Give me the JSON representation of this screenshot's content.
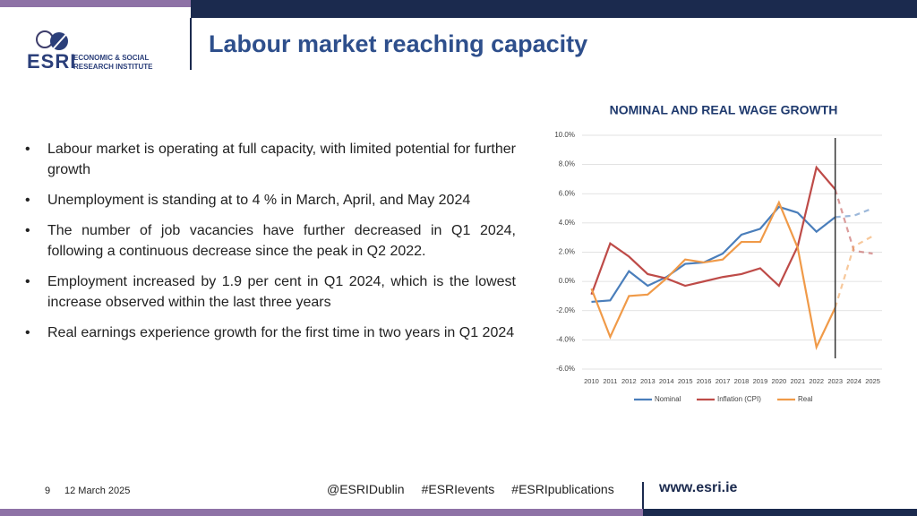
{
  "header": {
    "title": "Labour market reaching capacity",
    "logo": {
      "mark": "ESRI",
      "line1": "ECONOMIC & SOCIAL",
      "line2": "RESEARCH INSTITUTE"
    }
  },
  "bullets": [
    "Labour market is operating at full capacity, with limited potential for further growth",
    "Unemployment is standing at to 4 % in March, April, and May 2024",
    "The number of job vacancies have further decreased in Q1 2024, following a continuous decrease since the peak in Q2 2022.",
    "Employment increased by 1.9 per cent in Q1 2024, which is the lowest increase observed within the last three years",
    "Real earnings experience growth for the first time in two years in Q1 2024"
  ],
  "footer": {
    "page": "9",
    "date": "12 March 2025",
    "links": [
      "@ESRIDublin",
      "#ESRIevents",
      "#ESRIpublications"
    ],
    "website": "www.esri.ie"
  },
  "chart_data": {
    "type": "line",
    "title": "NOMINAL AND REAL WAGE GROWTH",
    "categories": [
      "2010",
      "2011",
      "2012",
      "2013",
      "2014",
      "2015",
      "2016",
      "2017",
      "2018",
      "2019",
      "2020",
      "2021",
      "2022",
      "2023",
      "2024",
      "2025"
    ],
    "series": [
      {
        "name": "Nominal",
        "color": "#4a7ebb",
        "values": [
          -1.4,
          -1.3,
          0.7,
          -0.3,
          0.3,
          1.2,
          1.3,
          1.9,
          3.2,
          3.6,
          5.1,
          4.7,
          3.4,
          4.4,
          4.5,
          5.0
        ]
      },
      {
        "name": "Inflation (CPI)",
        "color": "#be4b48",
        "values": [
          -0.9,
          2.6,
          1.7,
          0.5,
          0.2,
          -0.3,
          0.0,
          0.3,
          0.5,
          0.9,
          -0.3,
          2.4,
          7.8,
          6.3,
          2.1,
          1.9
        ]
      },
      {
        "name": "Real",
        "color": "#f09a48",
        "values": [
          -0.5,
          -3.8,
          -1.0,
          -0.9,
          0.2,
          1.5,
          1.3,
          1.5,
          2.7,
          2.7,
          5.4,
          2.3,
          -4.5,
          -1.8,
          2.4,
          3.1
        ]
      }
    ],
    "ylim": [
      -6,
      10
    ],
    "yticks": [
      {
        "value": -6,
        "label": "-6.0%"
      },
      {
        "value": -4,
        "label": "-4.0%"
      },
      {
        "value": -2,
        "label": "-2.0%"
      },
      {
        "value": 0,
        "label": "0.0%"
      },
      {
        "value": 2,
        "label": "2.0%"
      },
      {
        "value": 4,
        "label": "4.0%"
      },
      {
        "value": 6,
        "label": "6.0%"
      },
      {
        "value": 8,
        "label": "8.0%"
      },
      {
        "value": 10,
        "label": "10.0%"
      }
    ],
    "grid": true,
    "legend": "bottom"
  }
}
